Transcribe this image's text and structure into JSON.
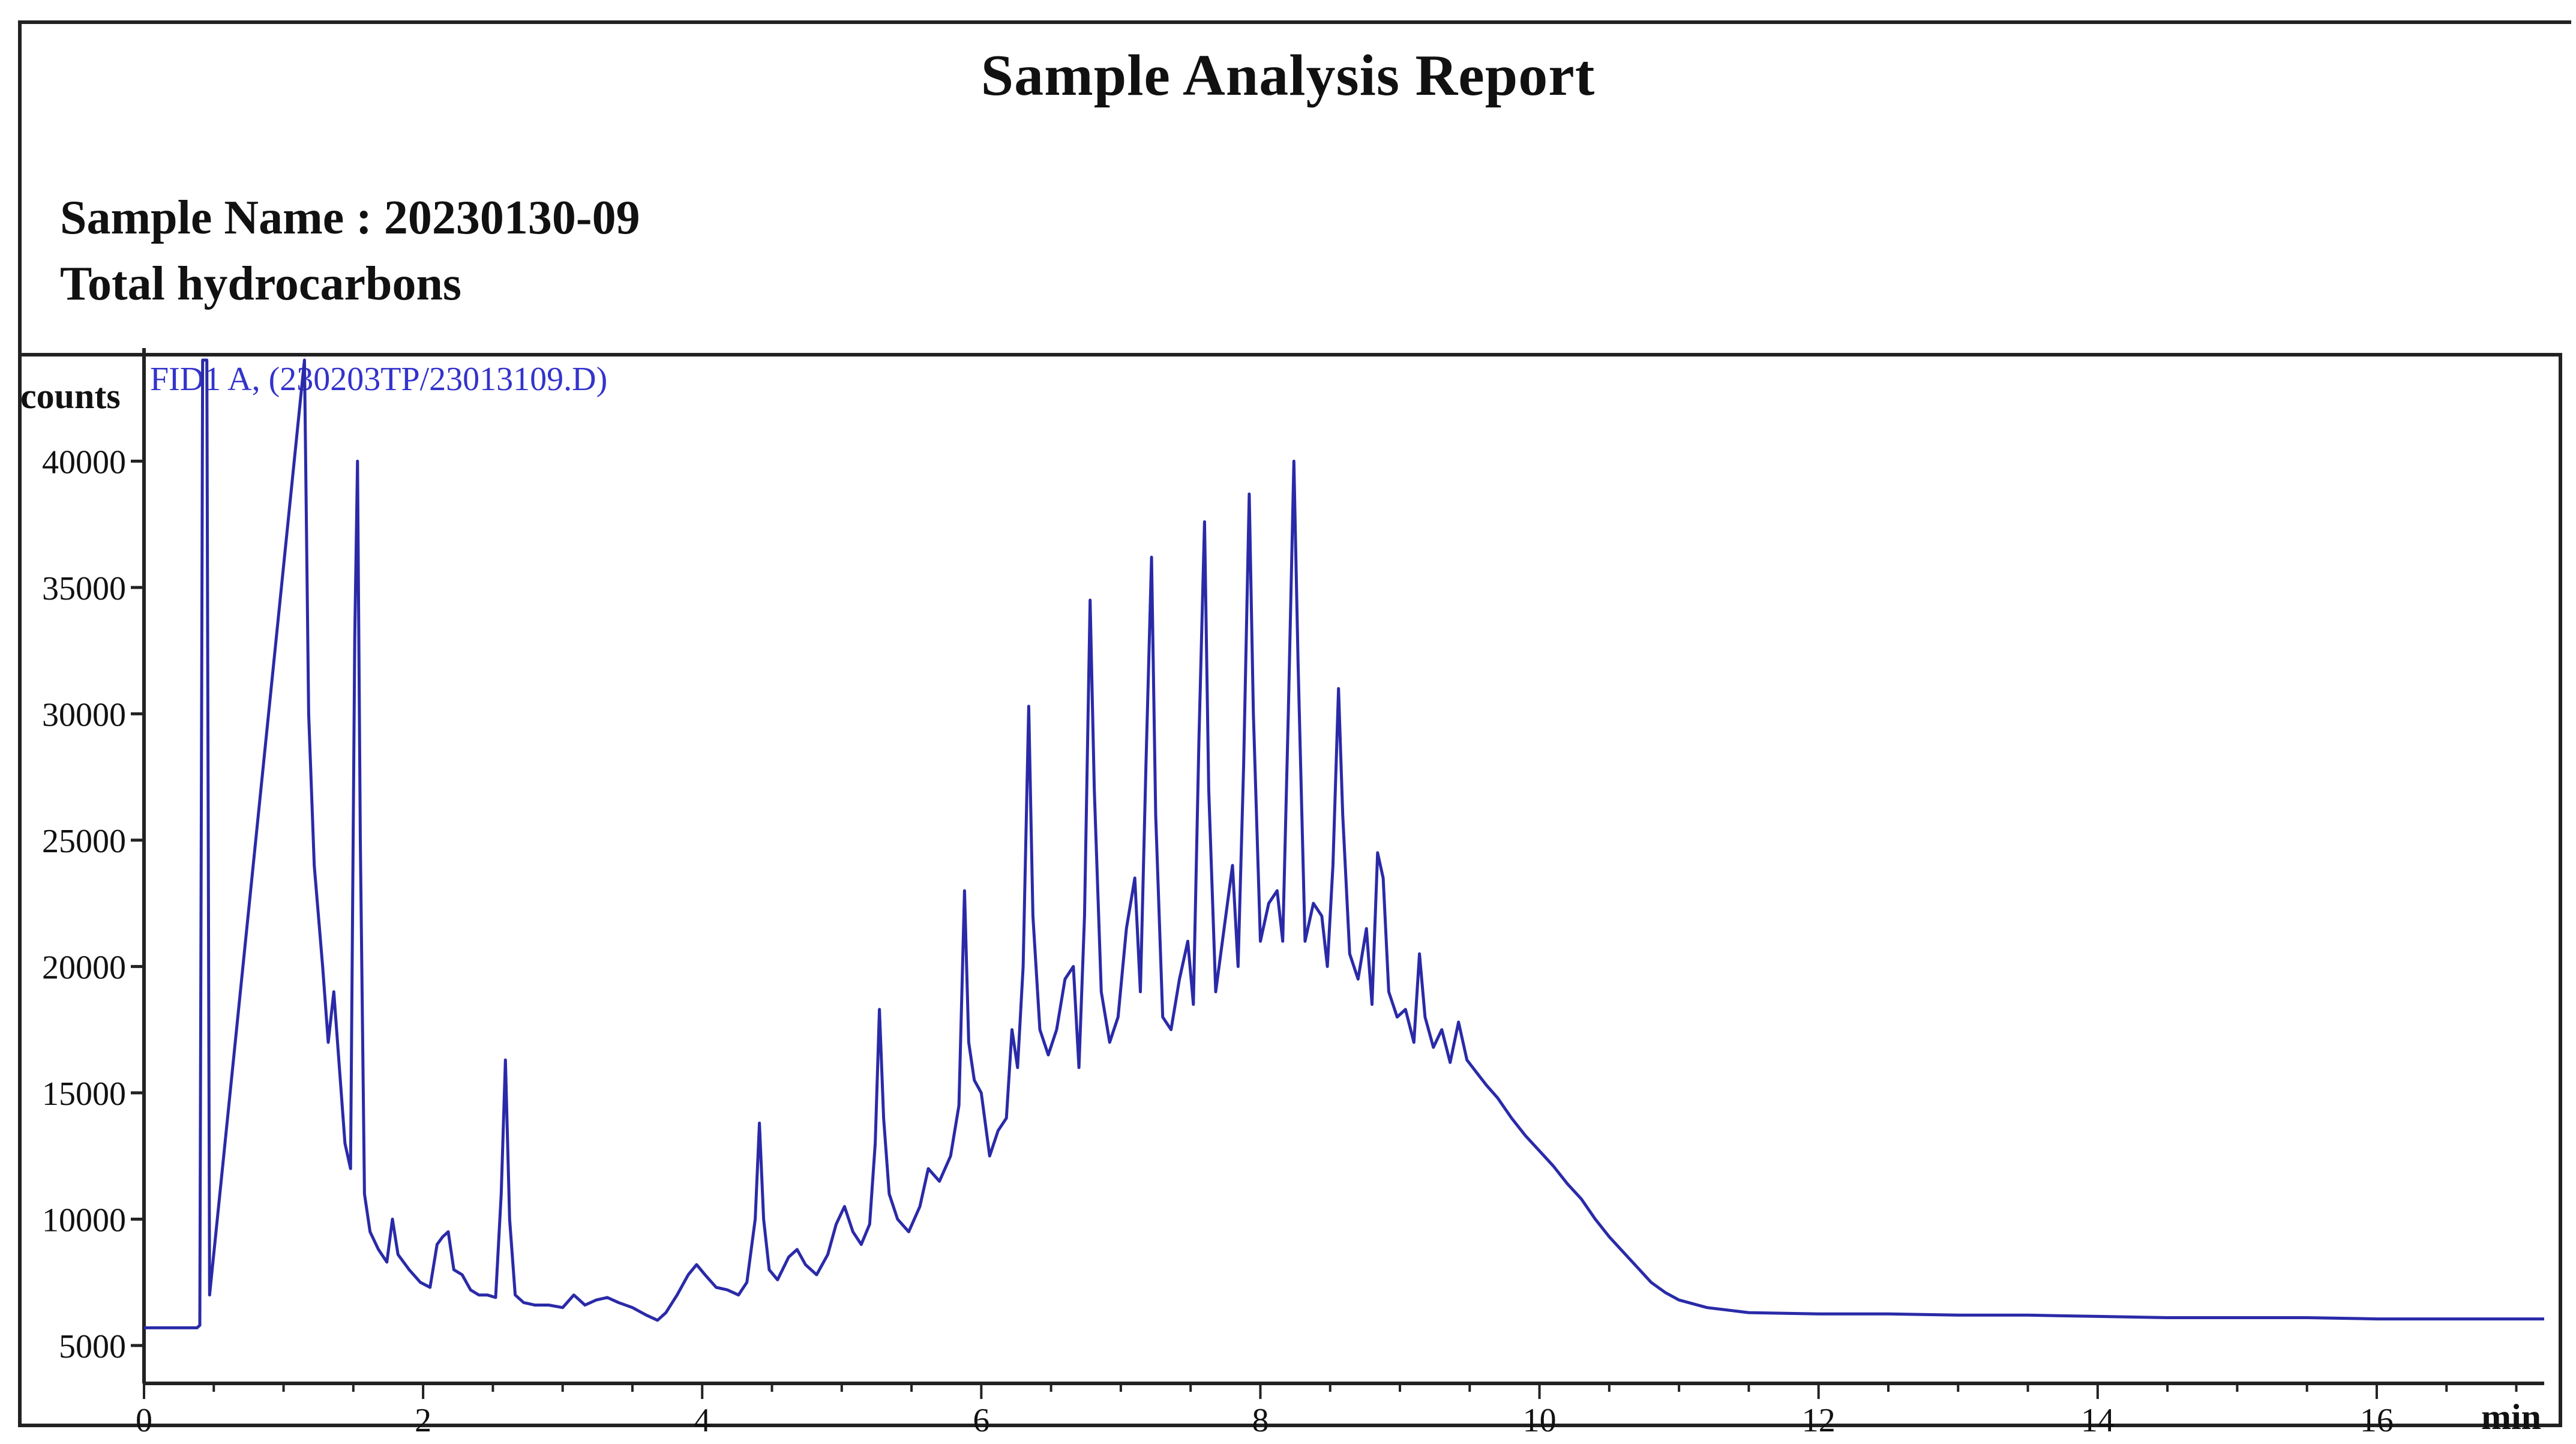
{
  "report": {
    "title": "Sample Analysis Report",
    "sample_name": "Sample Name : 20230130-09",
    "subtitle": "Total hydrocarbons"
  },
  "chart_data": {
    "type": "line",
    "trace_title": "FID1 A, (230203TP/23013109.D)",
    "xlabel": "min",
    "ylabel": "counts",
    "xlim": [
      0,
      17.2
    ],
    "ylim": [
      3500,
      44000
    ],
    "x_ticks": [
      0,
      2,
      4,
      6,
      8,
      10,
      12,
      14,
      16
    ],
    "y_ticks": [
      5000,
      10000,
      15000,
      20000,
      25000,
      30000,
      35000,
      40000
    ],
    "color": "#2a2aa8",
    "grid": false,
    "series": [
      {
        "points": [
          [
            0.0,
            5700
          ],
          [
            0.38,
            5700
          ],
          [
            0.4,
            5800
          ],
          [
            0.42,
            44000
          ],
          [
            0.45,
            44000
          ],
          [
            0.47,
            7000
          ],
          [
            1.15,
            44000
          ],
          [
            1.18,
            30000
          ],
          [
            1.22,
            24000
          ],
          [
            1.28,
            20000
          ],
          [
            1.32,
            17000
          ],
          [
            1.36,
            19000
          ],
          [
            1.4,
            16000
          ],
          [
            1.44,
            13000
          ],
          [
            1.48,
            12000
          ],
          [
            1.51,
            33000
          ],
          [
            1.53,
            40000
          ],
          [
            1.55,
            25000
          ],
          [
            1.58,
            11000
          ],
          [
            1.62,
            9500
          ],
          [
            1.68,
            8800
          ],
          [
            1.74,
            8300
          ],
          [
            1.78,
            10000
          ],
          [
            1.82,
            8600
          ],
          [
            1.9,
            8000
          ],
          [
            1.98,
            7500
          ],
          [
            2.05,
            7300
          ],
          [
            2.1,
            9000
          ],
          [
            2.14,
            9300
          ],
          [
            2.18,
            9500
          ],
          [
            2.22,
            8000
          ],
          [
            2.28,
            7800
          ],
          [
            2.34,
            7200
          ],
          [
            2.4,
            7000
          ],
          [
            2.46,
            7000
          ],
          [
            2.52,
            6900
          ],
          [
            2.56,
            11000
          ],
          [
            2.59,
            16300
          ],
          [
            2.62,
            10000
          ],
          [
            2.66,
            7000
          ],
          [
            2.72,
            6700
          ],
          [
            2.8,
            6600
          ],
          [
            2.9,
            6600
          ],
          [
            3.0,
            6500
          ],
          [
            3.08,
            7000
          ],
          [
            3.16,
            6600
          ],
          [
            3.24,
            6800
          ],
          [
            3.32,
            6900
          ],
          [
            3.4,
            6700
          ],
          [
            3.5,
            6500
          ],
          [
            3.6,
            6200
          ],
          [
            3.68,
            6000
          ],
          [
            3.74,
            6300
          ],
          [
            3.82,
            7000
          ],
          [
            3.9,
            7800
          ],
          [
            3.96,
            8200
          ],
          [
            4.02,
            7800
          ],
          [
            4.1,
            7300
          ],
          [
            4.18,
            7200
          ],
          [
            4.26,
            7000
          ],
          [
            4.32,
            7500
          ],
          [
            4.38,
            10000
          ],
          [
            4.41,
            13800
          ],
          [
            4.44,
            10000
          ],
          [
            4.48,
            8000
          ],
          [
            4.54,
            7600
          ],
          [
            4.62,
            8500
          ],
          [
            4.68,
            8800
          ],
          [
            4.74,
            8200
          ],
          [
            4.82,
            7800
          ],
          [
            4.9,
            8600
          ],
          [
            4.96,
            9800
          ],
          [
            5.02,
            10500
          ],
          [
            5.08,
            9500
          ],
          [
            5.14,
            9000
          ],
          [
            5.2,
            9800
          ],
          [
            5.24,
            13000
          ],
          [
            5.27,
            18300
          ],
          [
            5.3,
            14000
          ],
          [
            5.34,
            11000
          ],
          [
            5.4,
            10000
          ],
          [
            5.48,
            9500
          ],
          [
            5.56,
            10500
          ],
          [
            5.62,
            12000
          ],
          [
            5.7,
            11500
          ],
          [
            5.78,
            12500
          ],
          [
            5.84,
            14500
          ],
          [
            5.88,
            23000
          ],
          [
            5.91,
            17000
          ],
          [
            5.95,
            15500
          ],
          [
            6.0,
            15000
          ],
          [
            6.06,
            12500
          ],
          [
            6.12,
            13500
          ],
          [
            6.18,
            14000
          ],
          [
            6.22,
            17500
          ],
          [
            6.26,
            16000
          ],
          [
            6.3,
            20000
          ],
          [
            6.34,
            30300
          ],
          [
            6.37,
            22000
          ],
          [
            6.42,
            17500
          ],
          [
            6.48,
            16500
          ],
          [
            6.54,
            17500
          ],
          [
            6.6,
            19500
          ],
          [
            6.66,
            20000
          ],
          [
            6.7,
            16000
          ],
          [
            6.74,
            22000
          ],
          [
            6.78,
            34500
          ],
          [
            6.81,
            27000
          ],
          [
            6.86,
            19000
          ],
          [
            6.92,
            17000
          ],
          [
            6.98,
            18000
          ],
          [
            7.04,
            21500
          ],
          [
            7.1,
            23500
          ],
          [
            7.14,
            19000
          ],
          [
            7.18,
            28000
          ],
          [
            7.22,
            36200
          ],
          [
            7.25,
            26000
          ],
          [
            7.3,
            18000
          ],
          [
            7.36,
            17500
          ],
          [
            7.42,
            19500
          ],
          [
            7.48,
            21000
          ],
          [
            7.52,
            18500
          ],
          [
            7.56,
            29000
          ],
          [
            7.6,
            37600
          ],
          [
            7.63,
            27000
          ],
          [
            7.68,
            19000
          ],
          [
            7.74,
            21500
          ],
          [
            7.8,
            24000
          ],
          [
            7.84,
            20000
          ],
          [
            7.88,
            28000
          ],
          [
            7.92,
            38700
          ],
          [
            7.95,
            30000
          ],
          [
            8.0,
            21000
          ],
          [
            8.06,
            22500
          ],
          [
            8.12,
            23000
          ],
          [
            8.16,
            21000
          ],
          [
            8.2,
            30000
          ],
          [
            8.24,
            40000
          ],
          [
            8.27,
            32000
          ],
          [
            8.32,
            21000
          ],
          [
            8.38,
            22500
          ],
          [
            8.44,
            22000
          ],
          [
            8.48,
            20000
          ],
          [
            8.52,
            24000
          ],
          [
            8.56,
            31000
          ],
          [
            8.59,
            26000
          ],
          [
            8.64,
            20500
          ],
          [
            8.7,
            19500
          ],
          [
            8.76,
            21500
          ],
          [
            8.8,
            18500
          ],
          [
            8.84,
            24500
          ],
          [
            8.88,
            23500
          ],
          [
            8.92,
            19000
          ],
          [
            8.98,
            18000
          ],
          [
            9.04,
            18300
          ],
          [
            9.1,
            17000
          ],
          [
            9.14,
            20500
          ],
          [
            9.18,
            18000
          ],
          [
            9.24,
            16800
          ],
          [
            9.3,
            17500
          ],
          [
            9.36,
            16200
          ],
          [
            9.42,
            17800
          ],
          [
            9.48,
            16300
          ],
          [
            9.55,
            15800
          ],
          [
            9.62,
            15300
          ],
          [
            9.7,
            14800
          ],
          [
            9.8,
            14000
          ],
          [
            9.9,
            13300
          ],
          [
            10.0,
            12700
          ],
          [
            10.1,
            12100
          ],
          [
            10.2,
            11400
          ],
          [
            10.3,
            10800
          ],
          [
            10.4,
            10000
          ],
          [
            10.5,
            9300
          ],
          [
            10.6,
            8700
          ],
          [
            10.7,
            8100
          ],
          [
            10.8,
            7500
          ],
          [
            10.9,
            7100
          ],
          [
            11.0,
            6800
          ],
          [
            11.2,
            6500
          ],
          [
            11.5,
            6300
          ],
          [
            12.0,
            6250
          ],
          [
            12.5,
            6250
          ],
          [
            13.0,
            6200
          ],
          [
            13.5,
            6200
          ],
          [
            14.0,
            6150
          ],
          [
            14.5,
            6100
          ],
          [
            15.0,
            6100
          ],
          [
            15.5,
            6100
          ],
          [
            16.0,
            6050
          ],
          [
            16.5,
            6050
          ],
          [
            17.2,
            6050
          ]
        ]
      }
    ]
  }
}
